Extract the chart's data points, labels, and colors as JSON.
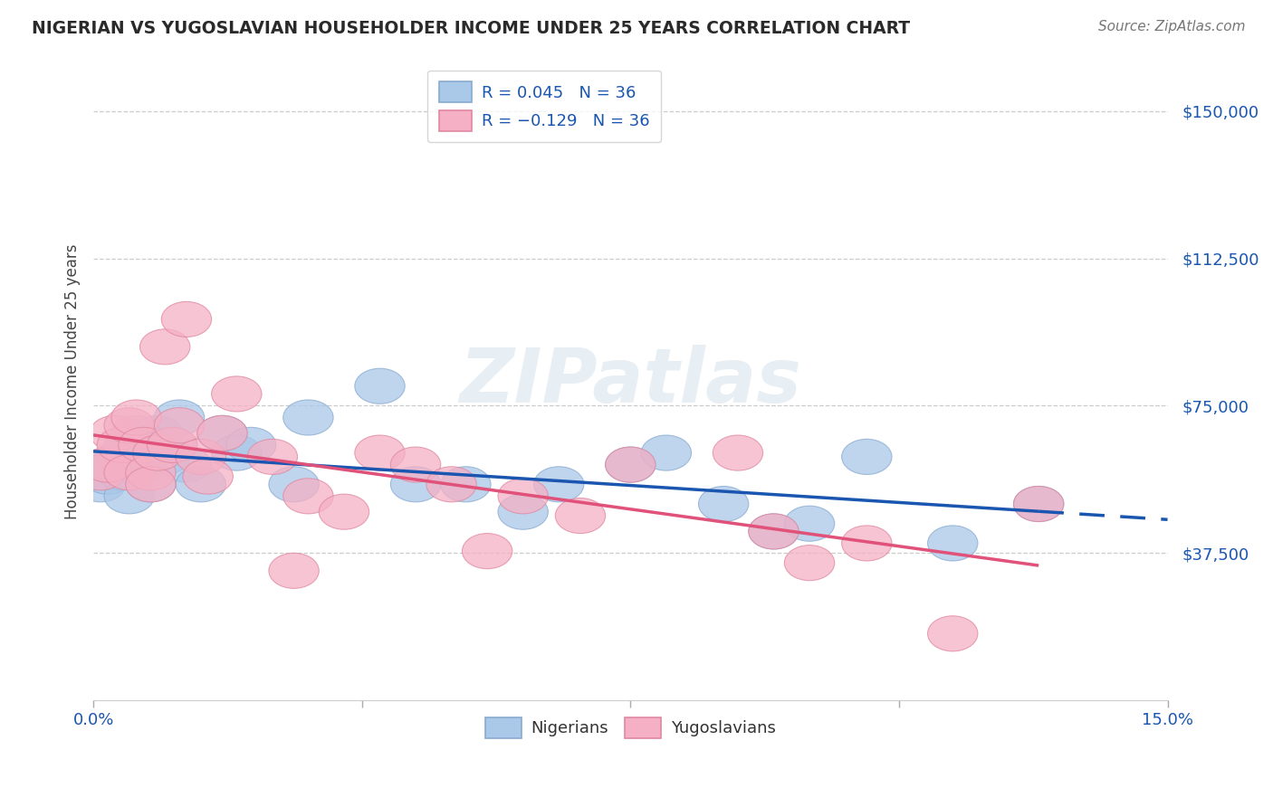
{
  "title": "NIGERIAN VS YUGOSLAVIAN HOUSEHOLDER INCOME UNDER 25 YEARS CORRELATION CHART",
  "source": "Source: ZipAtlas.com",
  "ylabel": "Householder Income Under 25 years",
  "xlim": [
    0.0,
    0.15
  ],
  "ylim": [
    0,
    162500
  ],
  "yticks": [
    37500,
    75000,
    112500,
    150000
  ],
  "ytick_labels": [
    "$37,500",
    "$75,000",
    "$112,500",
    "$150,000"
  ],
  "xtick_positions": [
    0.0,
    0.0375,
    0.075,
    0.1125,
    0.15
  ],
  "xtick_labels": [
    "0.0%",
    "",
    "",
    "",
    "15.0%"
  ],
  "nigerian_color": "#aac8e8",
  "yugoslav_color": "#f5b0c5",
  "nigerian_edge_color": "#88aad0",
  "yugoslav_edge_color": "#e088a0",
  "nigerian_line_color": "#1a56b0",
  "yugoslav_line_color": "#e0527a",
  "background_color": "#ffffff",
  "grid_color": "#cccccc",
  "nigerian_x": [
    0.001,
    0.002,
    0.003,
    0.004,
    0.004,
    0.005,
    0.005,
    0.006,
    0.006,
    0.007,
    0.008,
    0.008,
    0.009,
    0.01,
    0.011,
    0.012,
    0.013,
    0.015,
    0.018,
    0.02,
    0.022,
    0.028,
    0.03,
    0.04,
    0.045,
    0.052,
    0.06,
    0.065,
    0.075,
    0.08,
    0.088,
    0.095,
    0.1,
    0.108,
    0.12,
    0.132
  ],
  "nigerian_y": [
    55000,
    57000,
    60000,
    58000,
    62000,
    65000,
    52000,
    63000,
    68000,
    60000,
    65000,
    55000,
    68000,
    62000,
    65000,
    72000,
    60000,
    55000,
    68000,
    63000,
    65000,
    55000,
    72000,
    80000,
    55000,
    55000,
    48000,
    55000,
    60000,
    63000,
    50000,
    43000,
    45000,
    62000,
    40000,
    50000
  ],
  "yugoslav_x": [
    0.001,
    0.002,
    0.003,
    0.004,
    0.005,
    0.005,
    0.006,
    0.007,
    0.008,
    0.008,
    0.009,
    0.01,
    0.011,
    0.012,
    0.013,
    0.015,
    0.016,
    0.018,
    0.02,
    0.025,
    0.028,
    0.03,
    0.035,
    0.04,
    0.045,
    0.05,
    0.055,
    0.06,
    0.068,
    0.075,
    0.09,
    0.095,
    0.1,
    0.108,
    0.12,
    0.132
  ],
  "yugoslav_y": [
    58000,
    60000,
    68000,
    65000,
    70000,
    58000,
    72000,
    65000,
    58000,
    55000,
    63000,
    90000,
    65000,
    70000,
    97000,
    62000,
    57000,
    68000,
    78000,
    62000,
    33000,
    52000,
    48000,
    63000,
    60000,
    55000,
    38000,
    52000,
    47000,
    60000,
    63000,
    43000,
    35000,
    40000,
    17000,
    50000
  ]
}
